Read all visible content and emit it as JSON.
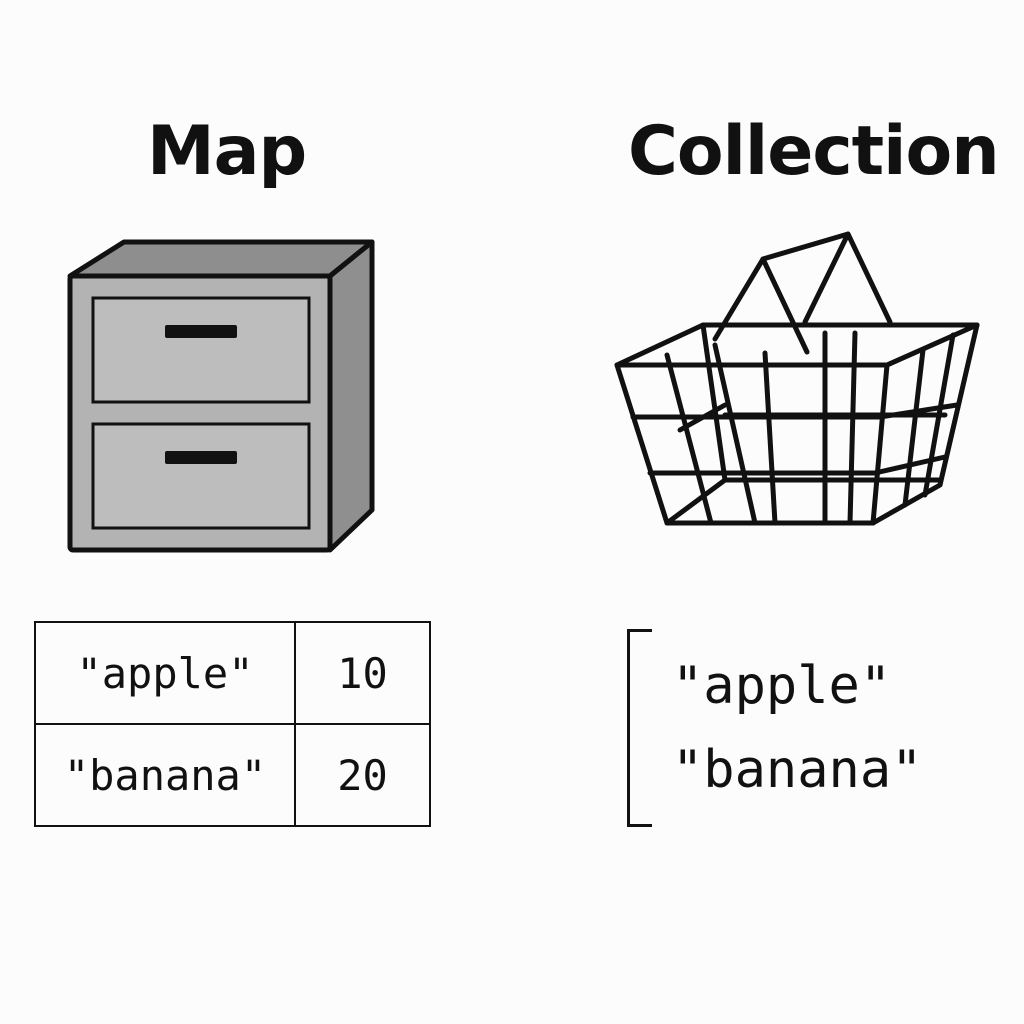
{
  "map": {
    "title": "Map",
    "illustration": "filing-cabinet-icon",
    "entries": [
      {
        "key": "\"apple\"",
        "value": "10"
      },
      {
        "key": "\"banana\"",
        "value": "20"
      }
    ]
  },
  "collection": {
    "title": "Collection",
    "illustration": "wire-basket-icon",
    "items": [
      "\"apple\"",
      "\"banana\""
    ]
  }
}
